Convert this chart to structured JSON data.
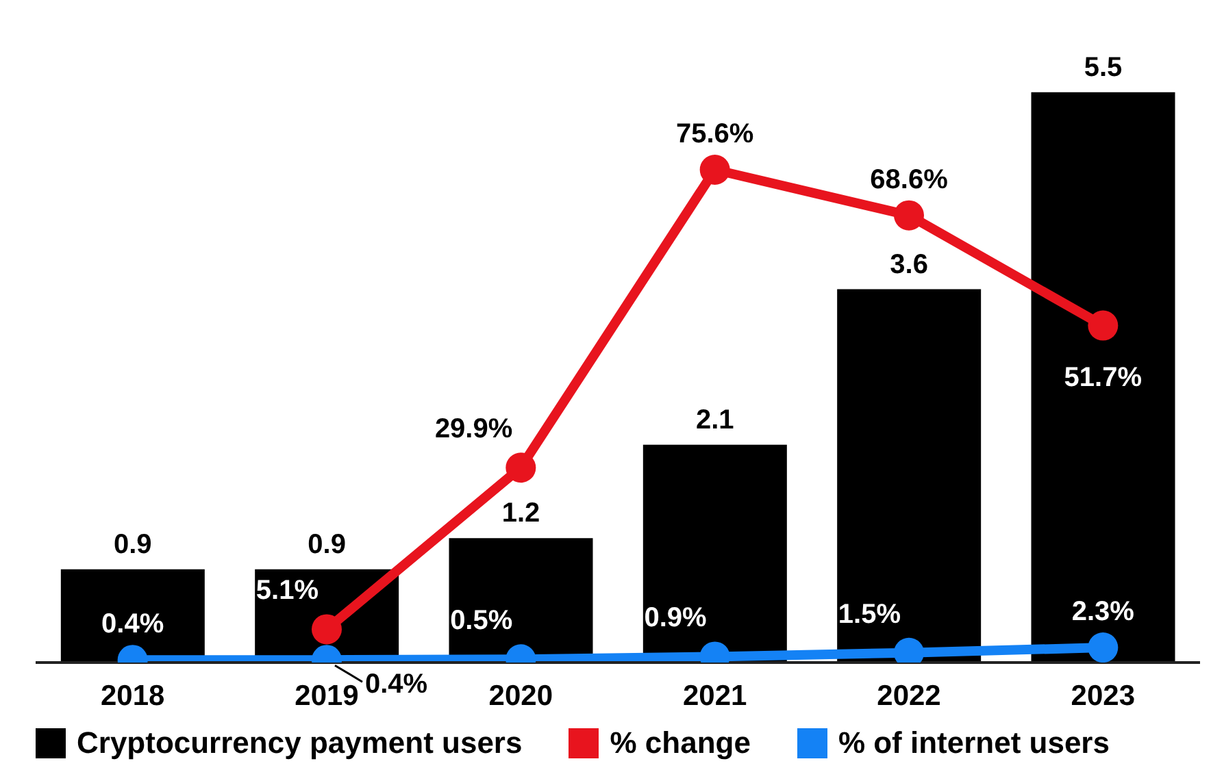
{
  "chart_data": {
    "type": "bar",
    "categories": [
      "2018",
      "2019",
      "2020",
      "2021",
      "2022",
      "2023"
    ],
    "legend": "bottom",
    "tick_labels": "x",
    "marker": "circle",
    "series": [
      {
        "name": "Cryptocurrency payment users",
        "color": "#000000",
        "values": [
          0.9,
          0.9,
          1.2,
          2.1,
          3.6,
          5.5
        ],
        "value_labels": [
          "0.9",
          "0.9",
          "1.2",
          "2.1",
          "3.6",
          "5.5"
        ]
      },
      {
        "name": "% change",
        "type": "line",
        "axis": "y2",
        "color": "#e8141e",
        "values": [
          null,
          5.1,
          29.9,
          75.6,
          68.6,
          51.7
        ],
        "value_labels": [
          null,
          "5.1%",
          "29.9%",
          "75.6%",
          "68.6%",
          "51.7%"
        ]
      },
      {
        "name": "% of internet users",
        "type": "line",
        "axis": "y2",
        "color": "#1482f5",
        "values": [
          0.4,
          0.4,
          0.5,
          0.9,
          1.5,
          2.3
        ],
        "value_labels": [
          "0.4%",
          "0.4%",
          "0.5%",
          "0.9%",
          "1.5%",
          "2.3%"
        ]
      }
    ]
  }
}
